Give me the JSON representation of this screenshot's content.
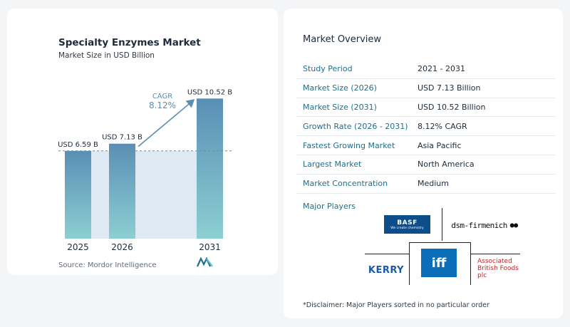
{
  "chart_data": {
    "type": "bar",
    "title": "Specialty Enzymes Market",
    "subtitle": "Market Size in USD Billion",
    "categories": [
      "2025",
      "2026",
      "2031"
    ],
    "values": [
      6.59,
      7.13,
      10.52
    ],
    "data_labels": [
      "USD 6.59 B",
      "USD 7.13 B",
      "USD 10.52 B"
    ],
    "reference_line_value": 6.59,
    "cagr_label": "CAGR",
    "cagr_value": "8.12%",
    "colors": {
      "bar_top": "#5a8fb5",
      "bar_bottom": "#8ccfd2",
      "area": "#dfe9f3",
      "arrow": "#5a8fb5",
      "cagr": "#5a8fb5"
    },
    "source": "Source:  Mordor Intelligence",
    "grid": false,
    "legend": "none"
  },
  "overview": {
    "title": "Market Overview",
    "rows": [
      {
        "label": "Study Period",
        "value": "2021 - 2031"
      },
      {
        "label": "Market Size (2026)",
        "value": "USD 7.13 Billion"
      },
      {
        "label": "Market Size (2031)",
        "value": "USD 10.52 Billion"
      },
      {
        "label": "Growth Rate (2026 - 2031)",
        "value": "8.12% CAGR"
      },
      {
        "label": "Fastest Growing Market",
        "value": "Asia Pacific"
      },
      {
        "label": "Largest Market",
        "value": "North America"
      },
      {
        "label": "Market Concentration",
        "value": "Medium"
      }
    ],
    "major_players_label": "Major Players"
  },
  "players": {
    "basf": "BASF",
    "basf_tagline": "We create chemistry",
    "dsm": "dsm-firmenich",
    "kerry": "KERRY",
    "iff": "iff",
    "abf_line1": "Associated",
    "abf_line2": "British Foods",
    "abf_line3": "plc"
  },
  "disclaimer": "*Disclaimer: Major Players sorted in no particular order"
}
